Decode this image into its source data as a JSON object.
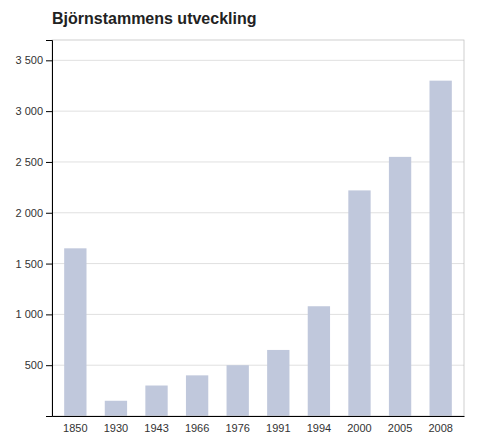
{
  "chart_data": {
    "type": "bar",
    "title": "Björnstammens utveckling",
    "categories": [
      "1850",
      "1930",
      "1943",
      "1966",
      "1976",
      "1991",
      "1994",
      "2000",
      "2005",
      "2008"
    ],
    "values": [
      1650,
      150,
      300,
      400,
      500,
      650,
      1080,
      2220,
      2550,
      3300
    ],
    "color": "#c0c8dc",
    "ylim": [
      0,
      3700
    ],
    "yticks": [
      500,
      {
        "value": 1000,
        "label": "1 000"
      },
      {
        "value": 1500,
        "label": "1 500"
      },
      {
        "value": 2000,
        "label": "2 000"
      },
      {
        "value": 2500,
        "label": "2 500"
      },
      {
        "value": 3000,
        "label": "3 000"
      },
      {
        "value": 3500,
        "label": "3 500"
      }
    ],
    "grid": true
  }
}
